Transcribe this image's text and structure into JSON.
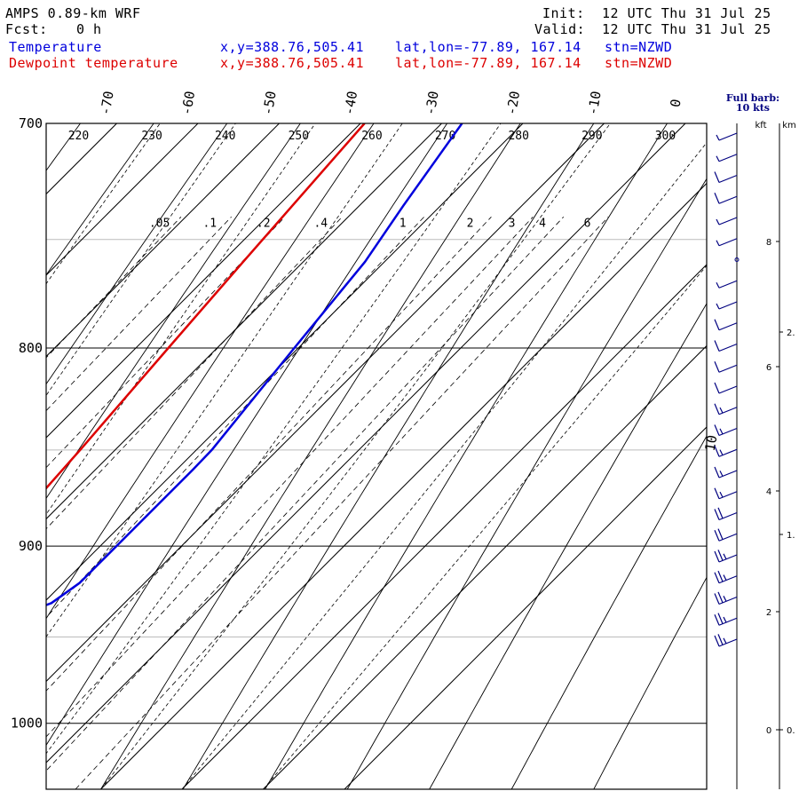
{
  "header": {
    "model": "AMPS 0.89-km WRF",
    "fcst_label": "Fcst:",
    "fcst_value": "0 h",
    "init_label": "Init:",
    "init_value": "12 UTC Thu 31 Jul 25",
    "valid_label": "Valid:",
    "valid_value": "12 UTC Thu 31 Jul 25"
  },
  "legend": [
    {
      "label": "Temperature",
      "xy": "x,y=388.76,505.41",
      "latlon": "lat,lon=-77.89, 167.14",
      "stn": "stn=NZWD",
      "color": "#0000dd"
    },
    {
      "label": "Dewpoint temperature",
      "xy": "x,y=388.76,505.41",
      "latlon": "lat,lon=-77.89, 167.14",
      "stn": "stn=NZWD",
      "color": "#dd0000"
    }
  ],
  "barb_header": {
    "line1": "Full barb:",
    "line2": "10 kts"
  },
  "height_units": {
    "kft": "kft",
    "km": "km"
  },
  "chart_data": {
    "type": "line",
    "subtype": "skew-T log-p diagram",
    "pressure_ticks": [
      "700",
      "800",
      "900",
      "1000"
    ],
    "pressure_range": [
      1040,
      700
    ],
    "temperature_ticks": [
      "-70",
      "-60",
      "-50",
      "-40",
      "-30",
      "-20",
      "-10",
      "0"
    ],
    "theta_labels": [
      "220",
      "230",
      "240",
      "250",
      "260",
      "270",
      "280",
      "290",
      "300"
    ],
    "mixing_ratio_labels": [
      ".05",
      ".1",
      ".2",
      ".4",
      "1",
      "2",
      "3",
      "4",
      "6"
    ],
    "series": [
      {
        "name": "Temperature",
        "color": "#0000dd",
        "points": [
          [
            961,
            -25.3
          ],
          [
            952,
            -25.8
          ],
          [
            944,
            -24.5
          ],
          [
            936,
            -20.8
          ],
          [
            931,
            -19.0
          ],
          [
            920,
            -18.0
          ],
          [
            900,
            -18.0
          ],
          [
            880,
            -18.0
          ],
          [
            860,
            -18.0
          ],
          [
            850,
            -18.1
          ],
          [
            800,
            -20.5
          ],
          [
            760,
            -22.4
          ],
          [
            735,
            -24.6
          ],
          [
            700,
            -27.5
          ]
        ]
      },
      {
        "name": "Dewpoint temperature",
        "color": "#dd0000",
        "points": [
          [
            961,
            -35.0
          ],
          [
            952,
            -34.6
          ],
          [
            930,
            -33.0
          ],
          [
            910,
            -32.7
          ],
          [
            900,
            -32.8
          ],
          [
            880,
            -33.5
          ],
          [
            850,
            -34.3
          ],
          [
            800,
            -36.0
          ],
          [
            760,
            -37.4
          ],
          [
            700,
            -39.5
          ]
        ]
      }
    ],
    "height_axis_kft": [
      "8",
      "6",
      "4",
      "2",
      "0"
    ],
    "height_axis_km": [
      "2.",
      "1.",
      "0."
    ],
    "wind_annotation": "10",
    "wind_barbs_kts": [
      25,
      25,
      25,
      25,
      25,
      20,
      20,
      15,
      15,
      15,
      15,
      15,
      10,
      10,
      10,
      10,
      5,
      5,
      0,
      5,
      5,
      10,
      10,
      5,
      5
    ]
  }
}
